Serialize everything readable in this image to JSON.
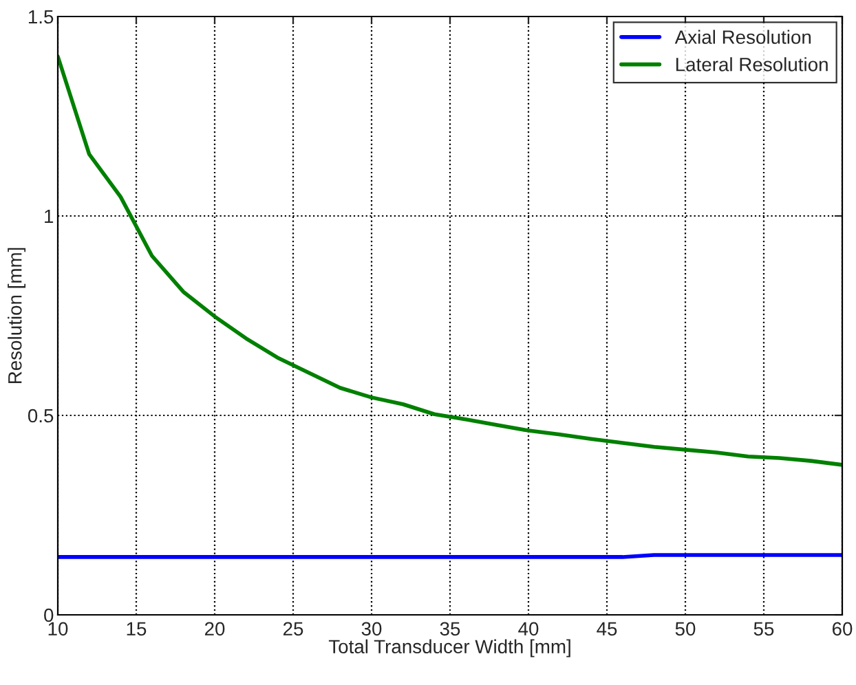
{
  "chart_data": {
    "type": "line",
    "xlabel": "Total Transducer Width [mm]",
    "ylabel": "Resolution [mm]",
    "x": [
      10,
      12,
      14,
      16,
      18,
      20,
      22,
      24,
      26,
      28,
      30,
      32,
      34,
      36,
      38,
      40,
      42,
      44,
      46,
      48,
      50,
      52,
      54,
      56,
      58,
      60
    ],
    "series": [
      {
        "name": "Axial Resolution",
        "color": "#0000ff",
        "values": [
          0.145,
          0.145,
          0.145,
          0.145,
          0.145,
          0.145,
          0.145,
          0.145,
          0.145,
          0.145,
          0.145,
          0.145,
          0.145,
          0.145,
          0.145,
          0.145,
          0.145,
          0.145,
          0.145,
          0.15,
          0.15,
          0.15,
          0.15,
          0.15,
          0.15,
          0.15
        ]
      },
      {
        "name": "Lateral Resolution",
        "color": "#008000",
        "values": [
          1.4,
          1.155,
          1.048,
          0.9,
          0.81,
          0.748,
          0.693,
          0.645,
          0.607,
          0.569,
          0.545,
          0.528,
          0.503,
          0.49,
          0.476,
          0.462,
          0.452,
          0.441,
          0.431,
          0.421,
          0.414,
          0.407,
          0.397,
          0.393,
          0.386,
          0.376
        ]
      }
    ],
    "xlim": [
      10,
      60
    ],
    "ylim": [
      0,
      1.5
    ],
    "xticks": [
      10,
      15,
      20,
      25,
      30,
      35,
      40,
      45,
      50,
      55,
      60
    ],
    "yticks": [
      0,
      0.5,
      1,
      1.5
    ],
    "grid": true,
    "legend": "top right",
    "marker": "none",
    "line_style": "solid"
  }
}
